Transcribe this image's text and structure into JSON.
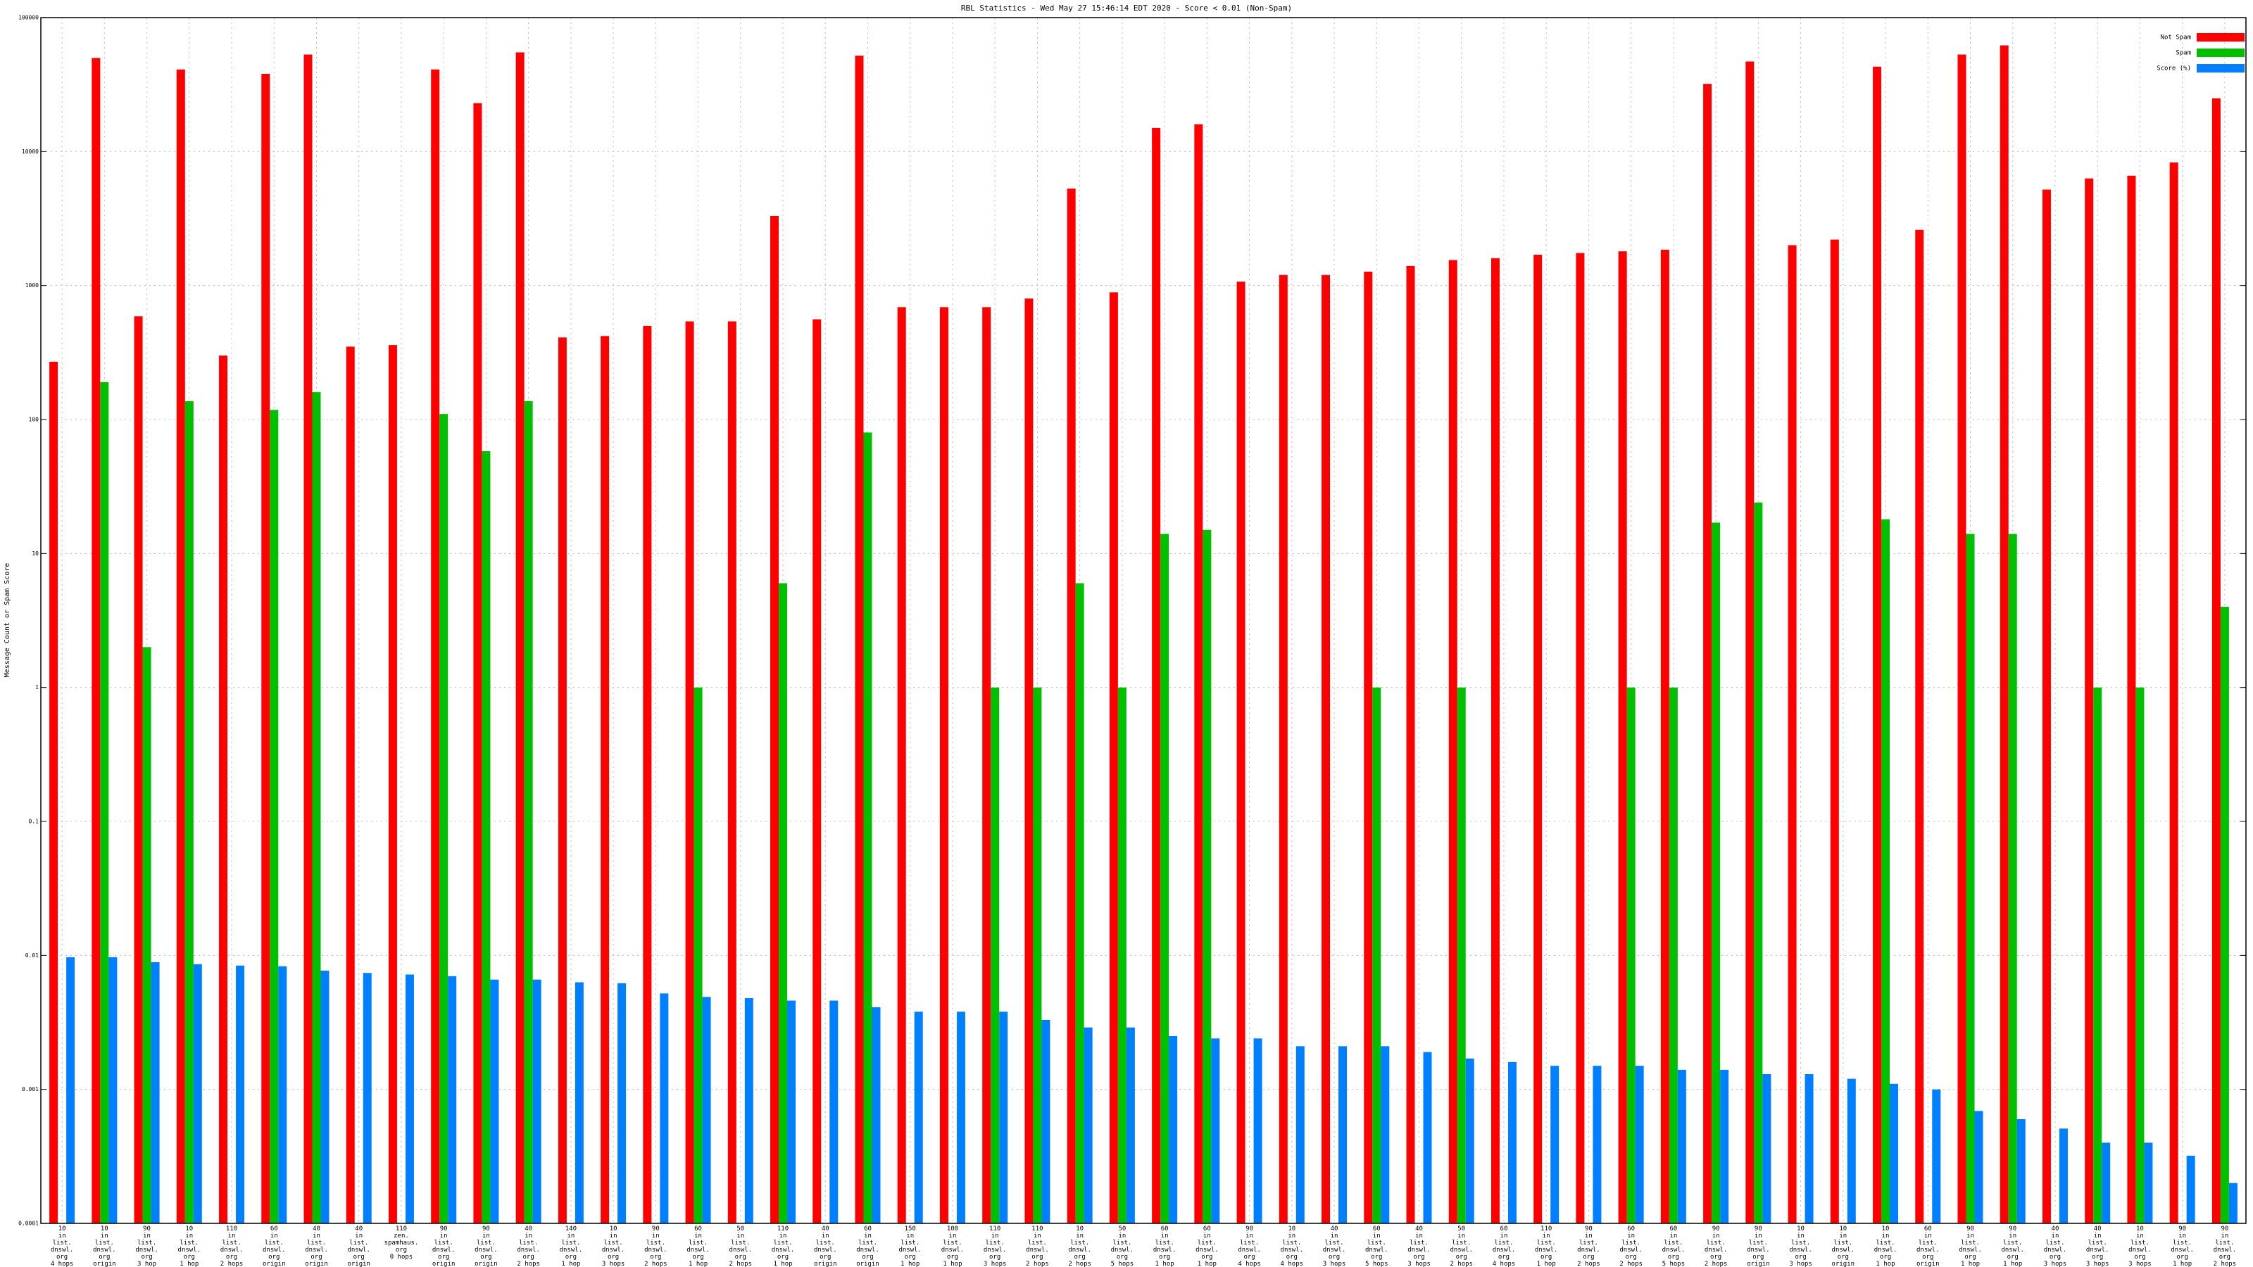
{
  "chart_data": {
    "type": "bar",
    "title": "RBL Statistics - Wed May 27 15:46:14 EDT 2020 - Score < 0.01 (Non-Spam)",
    "y_label": "Message Count or Spam Score",
    "log_scale": true,
    "grid": true,
    "legend": "top-right",
    "ylim": [
      0.0001,
      100000
    ],
    "yticks": [
      0.0001,
      0.001,
      0.01,
      0.1,
      1,
      10,
      100,
      1000,
      10000,
      100000
    ],
    "categories": [
      [
        "10",
        "in",
        "list.",
        "dnswl.",
        "org",
        "4 hops"
      ],
      [
        "10",
        "in",
        "list.",
        "dnswl.",
        "org",
        "origin"
      ],
      [
        "90",
        "in",
        "list.",
        "dnswl.",
        "org",
        "3 hop"
      ],
      [
        "10",
        "in",
        "list.",
        "dnswl.",
        "org",
        "1 hop"
      ],
      [
        "110",
        "in",
        "list.",
        "dnswl.",
        "org",
        "2 hops"
      ],
      [
        "60",
        "in",
        "list.",
        "dnswl.",
        "org",
        "origin"
      ],
      [
        "40",
        "in",
        "list.",
        "dnswl.",
        "org",
        "origin"
      ],
      [
        "40",
        "in",
        "list.",
        "dnswl.",
        "org",
        "origin"
      ],
      [
        "110",
        "zen.",
        "spamhaus.",
        "org",
        "0 hops"
      ],
      [
        "90",
        "in",
        "list.",
        "dnswl.",
        "org",
        "origin"
      ],
      [
        "90",
        "in",
        "list.",
        "dnswl.",
        "org",
        "origin"
      ],
      [
        "40",
        "in",
        "list.",
        "dnswl.",
        "org",
        "2 hops"
      ],
      [
        "140",
        "in",
        "list.",
        "dnswl.",
        "org",
        "1 hop"
      ],
      [
        "10",
        "in",
        "list.",
        "dnswl.",
        "org",
        "3 hops"
      ],
      [
        "90",
        "in",
        "list.",
        "dnswl.",
        "org",
        "2 hops"
      ],
      [
        "60",
        "in",
        "list.",
        "dnswl.",
        "org",
        "1 hop"
      ],
      [
        "50",
        "in",
        "list.",
        "dnswl.",
        "org",
        "2 hops"
      ],
      [
        "110",
        "in",
        "list.",
        "dnswl.",
        "org",
        "1 hop"
      ],
      [
        "40",
        "in",
        "list.",
        "dnswl.",
        "org",
        "origin"
      ],
      [
        "60",
        "in",
        "list.",
        "dnswl.",
        "org",
        "origin"
      ],
      [
        "150",
        "in",
        "list.",
        "dnswl.",
        "org",
        "1 hop"
      ],
      [
        "100",
        "in",
        "list.",
        "dnswl.",
        "org",
        "1 hop"
      ],
      [
        "110",
        "in",
        "list.",
        "dnswl.",
        "org",
        "3 hops"
      ],
      [
        "110",
        "in",
        "list.",
        "dnswl.",
        "org",
        "2 hops"
      ],
      [
        "10",
        "in",
        "list.",
        "dnswl.",
        "org",
        "2 hops"
      ],
      [
        "50",
        "in",
        "list.",
        "dnswl.",
        "org",
        "5 hops"
      ],
      [
        "60",
        "in",
        "list.",
        "dnswl.",
        "org",
        "1 hop"
      ],
      [
        "60",
        "in",
        "list.",
        "dnswl.",
        "org",
        "1 hop"
      ],
      [
        "90",
        "in",
        "list.",
        "dnswl.",
        "org",
        "4 hops"
      ],
      [
        "10",
        "in",
        "list.",
        "dnswl.",
        "org",
        "4 hops"
      ],
      [
        "40",
        "in",
        "list.",
        "dnswl.",
        "org",
        "3 hops"
      ],
      [
        "60",
        "in",
        "list.",
        "dnswl.",
        "org",
        "5 hops"
      ],
      [
        "40",
        "in",
        "list.",
        "dnswl.",
        "org",
        "3 hops"
      ],
      [
        "50",
        "in",
        "list.",
        "dnswl.",
        "org",
        "2 hops"
      ],
      [
        "60",
        "in",
        "list.",
        "dnswl.",
        "org",
        "4 hops"
      ],
      [
        "110",
        "in",
        "list.",
        "dnswl.",
        "org",
        "1 hop"
      ],
      [
        "90",
        "in",
        "list.",
        "dnswl.",
        "org",
        "2 hops"
      ],
      [
        "60",
        "in",
        "list.",
        "dnswl.",
        "org",
        "2 hops"
      ],
      [
        "60",
        "in",
        "list.",
        "dnswl.",
        "org",
        "5 hops"
      ],
      [
        "90",
        "in",
        "list.",
        "dnswl.",
        "org",
        "2 hops"
      ],
      [
        "90",
        "in",
        "list.",
        "dnswl.",
        "org",
        "origin"
      ],
      [
        "10",
        "in",
        "list.",
        "dnswl.",
        "org",
        "3 hops"
      ],
      [
        "10",
        "in",
        "list.",
        "dnswl.",
        "org",
        "origin"
      ],
      [
        "10",
        "in",
        "list.",
        "dnswl.",
        "org",
        "1 hop"
      ],
      [
        "60",
        "in",
        "list.",
        "dnswl.",
        "org",
        "origin"
      ],
      [
        "90",
        "in",
        "list.",
        "dnswl.",
        "org",
        "1 hop"
      ],
      [
        "90",
        "in",
        "list.",
        "dnswl.",
        "org",
        "1 hop"
      ],
      [
        "40",
        "in",
        "list.",
        "dnswl.",
        "org",
        "3 hops"
      ],
      [
        "40",
        "in",
        "list.",
        "dnswl.",
        "org",
        "3 hops"
      ],
      [
        "10",
        "in",
        "list.",
        "dnswl.",
        "org",
        "3 hops"
      ],
      [
        "90",
        "in",
        "list.",
        "dnswl.",
        "org",
        "1 hop"
      ],
      [
        "90",
        "in",
        "list.",
        "dnswl.",
        "org",
        "2 hops"
      ]
    ],
    "series": [
      {
        "name": "Not Spam",
        "color": "#ff0000",
        "values": [
          270,
          50000,
          590,
          41000,
          300,
          38000,
          53000,
          350,
          360,
          41000,
          23000,
          55000,
          410,
          420,
          500,
          540,
          540,
          3300,
          560,
          52000,
          690,
          690,
          690,
          800,
          5300,
          890,
          15000,
          16000,
          1070,
          1200,
          1200,
          1270,
          1400,
          1550,
          1600,
          1700,
          1750,
          1800,
          1850,
          32000,
          47000,
          2000,
          2200,
          43000,
          2600,
          53000,
          62000,
          5200,
          6300,
          6600,
          8300,
          25000
        ]
      },
      {
        "name": "Spam",
        "color": "#00c000",
        "values": [
          null,
          190,
          2,
          137,
          null,
          118,
          160,
          null,
          null,
          110,
          58,
          137,
          null,
          null,
          null,
          1,
          null,
          6,
          null,
          80,
          null,
          null,
          1,
          1,
          6,
          1,
          14,
          15,
          null,
          null,
          null,
          1,
          null,
          1,
          null,
          null,
          null,
          1,
          1,
          17,
          24,
          null,
          null,
          18,
          null,
          14,
          14,
          null,
          1,
          1,
          null,
          4
        ]
      },
      {
        "name": "Score (%)",
        "color": "#0080ff",
        "values": [
          0.0097,
          0.0097,
          0.0089,
          0.0086,
          0.0084,
          0.0083,
          0.0077,
          0.0074,
          0.0072,
          0.007,
          0.0066,
          0.0066,
          0.0063,
          0.0062,
          0.0052,
          0.0049,
          0.0048,
          0.0046,
          0.0046,
          0.0041,
          0.0038,
          0.0038,
          0.0038,
          0.0033,
          0.0029,
          0.0029,
          0.0025,
          0.0024,
          0.0024,
          0.0021,
          0.0021,
          0.0021,
          0.0019,
          0.0017,
          0.0016,
          0.0015,
          0.0015,
          0.0015,
          0.0014,
          0.0014,
          0.0013,
          0.0013,
          0.0012,
          0.0011,
          0.001,
          0.00069,
          0.0006,
          0.00051,
          0.0004,
          0.0004,
          0.00032,
          0.0002
        ]
      }
    ]
  }
}
